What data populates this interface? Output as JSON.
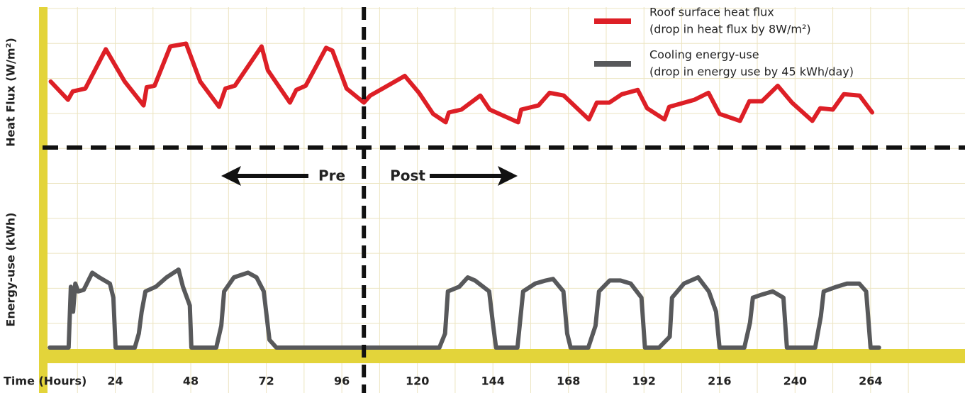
{
  "chart_data": {
    "type": "line",
    "xlabel": "Time (Hours)",
    "ylabel": "Heat Flux (W/m²)",
    "y2label": "Energy-use (kWh)",
    "xlim": [
      0,
      294
    ],
    "xticks": [
      24,
      48,
      72,
      96,
      120,
      144,
      168,
      192,
      216,
      240,
      264
    ],
    "ylim": [
      0,
      100
    ],
    "y2lim": [
      0,
      110
    ],
    "grid": true,
    "intervention_x": 103,
    "annotations": [
      "Pre",
      "Post"
    ],
    "series": [
      {
        "name": "Roof surface heat flux",
        "note": "(drop in heat flux by 8W/m²)",
        "color": "#dd1f26",
        "x": [
          3.5,
          9,
          10.5,
          14.5,
          21,
          27,
          33,
          34,
          36.5,
          41.5,
          46.5,
          51,
          57,
          59,
          62,
          70.5,
          72.5,
          79.5,
          81.5,
          84.5,
          91,
          93,
          97.5,
          103,
          105,
          109,
          116,
          120.5,
          125,
          129,
          130,
          134,
          140,
          143,
          152,
          153,
          158.5,
          162,
          166.5,
          174.5,
          177,
          181,
          185,
          190,
          193,
          198.5,
          200,
          208,
          212.5,
          216,
          222.5,
          225.5,
          229.5,
          234.5,
          239,
          245.5,
          248,
          252,
          255.5,
          260.5,
          264.5
        ],
        "values": [
          47,
          34,
          40,
          42,
          70,
          47,
          30,
          43,
          44,
          72,
          74,
          47,
          29,
          42,
          44,
          72,
          55,
          32,
          41,
          44,
          71,
          69,
          42,
          32,
          37,
          42,
          51,
          39,
          24,
          18,
          25,
          27,
          37,
          27,
          18,
          27,
          30,
          39,
          37,
          20,
          32,
          32,
          38,
          41,
          28,
          20,
          29,
          34,
          39,
          24,
          19,
          33,
          33,
          44,
          32,
          19,
          28,
          27,
          38,
          37,
          25
        ]
      },
      {
        "name": "Cooling energy-use",
        "note": "(drop in energy use by 45 kWh/day)",
        "color": "#58595b",
        "axis": "y2",
        "x": [
          3.2,
          9.2,
          9.9,
          10.6,
          11.3,
          12.2,
          14,
          16.7,
          18.9,
          22.3,
          23.4,
          24.1,
          30.2,
          31.5,
          32.4,
          33.6,
          36.9,
          40.3,
          44.1,
          45.5,
          47.7,
          48.2,
          56.1,
          57.7,
          58.6,
          61.7,
          66.2,
          68.9,
          71.2,
          73,
          75.2,
          127,
          128.8,
          129.7,
          133.3,
          136,
          138.3,
          142.8,
          144.1,
          145,
          151.8,
          153.6,
          157.4,
          160.8,
          163.1,
          166.4,
          167.6,
          168.7,
          174.3,
          176.6,
          177.7,
          181.1,
          184.5,
          187.8,
          191.2,
          192.3,
          196.8,
          200.2,
          200.9,
          204.7,
          209.2,
          212.6,
          214.9,
          216,
          223.9,
          225.7,
          226.6,
          229.5,
          232.9,
          236.3,
          237.4,
          246.4,
          248.2,
          249.1,
          253.2,
          256.5,
          260.4,
          262.6,
          264,
          266.7
        ],
        "values": [
          0,
          0,
          39,
          23,
          41,
          36,
          37,
          48,
          45,
          41,
          32,
          0,
          0,
          9,
          23,
          36,
          39,
          45,
          50,
          39,
          27,
          0,
          0,
          14,
          36,
          45,
          48,
          45,
          36,
          5,
          0,
          0,
          9,
          36,
          39,
          45,
          43,
          36,
          14,
          0,
          0,
          36,
          41,
          43,
          44,
          36,
          9,
          0,
          0,
          14,
          36,
          43,
          43,
          41,
          32,
          0,
          0,
          7,
          32,
          41,
          45,
          36,
          23,
          0,
          0,
          16,
          32,
          34,
          36,
          32,
          0,
          0,
          20,
          36,
          39,
          41,
          41,
          36,
          0,
          0
        ]
      }
    ]
  }
}
